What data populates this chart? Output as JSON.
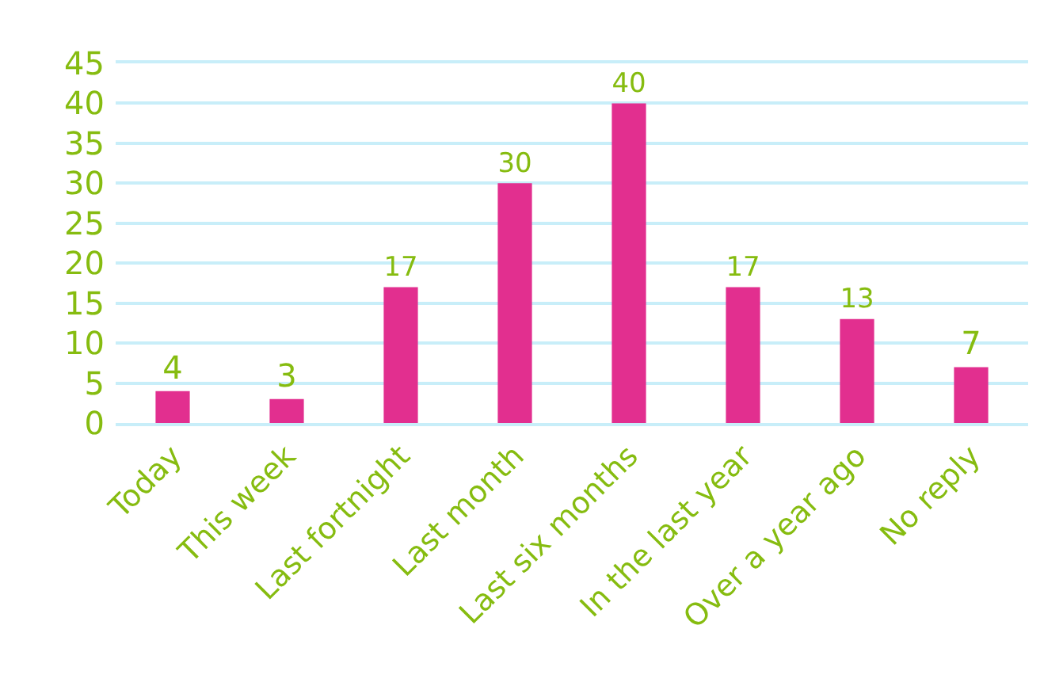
{
  "chart_data": {
    "type": "bar",
    "categories": [
      "Today",
      "This week",
      "Last fortnight",
      "Last month",
      "Last six months",
      "In the last year",
      "Over a year ago",
      "No reply"
    ],
    "values": [
      4,
      3,
      17,
      30,
      40,
      17,
      13,
      7
    ],
    "color": "#e22f8f",
    "ylim": [
      0,
      45
    ],
    "yticks": [
      0,
      5,
      10,
      15,
      20,
      25,
      30,
      35,
      40,
      45
    ],
    "grid": "y",
    "data_labels": true
  }
}
